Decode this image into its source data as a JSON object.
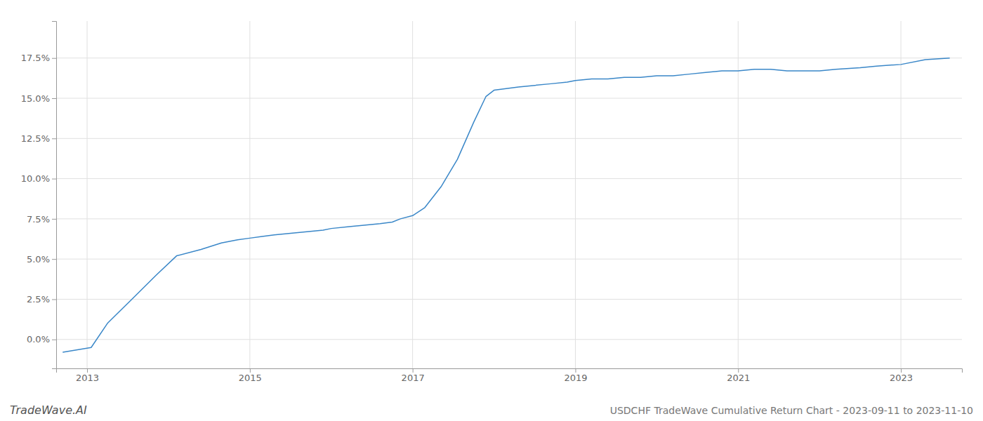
{
  "chart_data": {
    "type": "line",
    "title": "USDCHF TradeWave Cumulative Return Chart - 2023-09-11 to 2023-11-10",
    "annotations": [
      "TradeWave.AI"
    ],
    "color": "#3a87c8",
    "grid": true,
    "x": [
      2012.7,
      2013.05,
      2013.25,
      2013.55,
      2013.85,
      2014.1,
      2014.4,
      2014.65,
      2014.85,
      2015.0,
      2015.15,
      2015.3,
      2015.5,
      2015.7,
      2015.9,
      2016.0,
      2016.2,
      2016.4,
      2016.6,
      2016.75,
      2016.85,
      2017.0,
      2017.15,
      2017.35,
      2017.55,
      2017.75,
      2017.9,
      2018.0,
      2018.15,
      2018.3,
      2018.5,
      2018.7,
      2018.9,
      2019.0,
      2019.2,
      2019.4,
      2019.6,
      2019.8,
      2020.0,
      2020.2,
      2020.4,
      2020.6,
      2020.8,
      2021.0,
      2021.2,
      2021.4,
      2021.6,
      2021.8,
      2022.0,
      2022.2,
      2022.5,
      2022.7,
      2023.0,
      2023.3,
      2023.6
    ],
    "values": [
      -0.008,
      -0.005,
      0.01,
      0.025,
      0.04,
      0.052,
      0.056,
      0.06,
      0.062,
      0.063,
      0.064,
      0.065,
      0.066,
      0.067,
      0.068,
      0.069,
      0.07,
      0.071,
      0.072,
      0.073,
      0.075,
      0.077,
      0.082,
      0.095,
      0.112,
      0.135,
      0.151,
      0.155,
      0.156,
      0.157,
      0.158,
      0.159,
      0.16,
      0.161,
      0.162,
      0.162,
      0.163,
      0.163,
      0.164,
      0.164,
      0.165,
      0.166,
      0.167,
      0.167,
      0.168,
      0.168,
      0.167,
      0.167,
      0.167,
      0.168,
      0.169,
      0.17,
      0.171,
      0.174,
      0.175
    ],
    "xlim": [
      2012.62,
      2023.75
    ],
    "xticks": [
      2013,
      2015,
      2017,
      2019,
      2021,
      2023
    ],
    "ylim": [
      -0.018,
      0.198
    ],
    "yticks": [
      {
        "value": 0.0,
        "label": "0.0%"
      },
      {
        "value": 0.025,
        "label": "2.5%"
      },
      {
        "value": 0.05,
        "label": "5.0%"
      },
      {
        "value": 0.075,
        "label": "7.5%"
      },
      {
        "value": 0.1,
        "label": "10.0%"
      },
      {
        "value": 0.125,
        "label": "12.5%"
      },
      {
        "value": 0.15,
        "label": "15.0%"
      },
      {
        "value": 0.175,
        "label": "17.5%"
      }
    ]
  }
}
